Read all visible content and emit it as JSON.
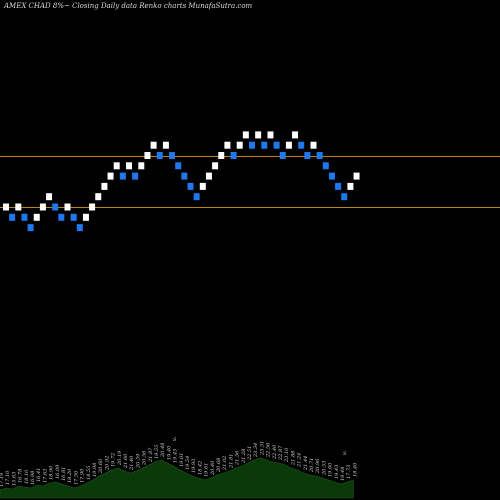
{
  "chart_data": {
    "type": "renko",
    "title": "AMEX  CHAD 8%~  Closing Daily data  Renko  charts MunafaSutra.com",
    "colors": {
      "background": "#000000",
      "up_brick": "#ffffff",
      "down_brick": "#1e78f0",
      "level_line": "#b8860b",
      "volume_fill": "#0a3a0a",
      "volume_outline": "#1e5a1e"
    },
    "level_lines": [
      6.2,
      4.7
    ],
    "bricks": [
      {
        "dir": "up",
        "level": 4.7
      },
      {
        "dir": "down",
        "level": 4.4
      },
      {
        "dir": "up",
        "level": 4.7
      },
      {
        "dir": "down",
        "level": 4.4
      },
      {
        "dir": "down",
        "level": 4.1
      },
      {
        "dir": "up",
        "level": 4.4
      },
      {
        "dir": "up",
        "level": 4.7
      },
      {
        "dir": "up",
        "level": 5.0
      },
      {
        "dir": "down",
        "level": 4.7
      },
      {
        "dir": "down",
        "level": 4.4
      },
      {
        "dir": "up",
        "level": 4.7
      },
      {
        "dir": "down",
        "level": 4.4
      },
      {
        "dir": "down",
        "level": 4.1
      },
      {
        "dir": "up",
        "level": 4.4
      },
      {
        "dir": "up",
        "level": 4.7
      },
      {
        "dir": "up",
        "level": 5.0
      },
      {
        "dir": "up",
        "level": 5.3
      },
      {
        "dir": "up",
        "level": 5.6
      },
      {
        "dir": "up",
        "level": 5.9
      },
      {
        "dir": "down",
        "level": 5.6
      },
      {
        "dir": "up",
        "level": 5.9
      },
      {
        "dir": "down",
        "level": 5.6
      },
      {
        "dir": "up",
        "level": 5.9
      },
      {
        "dir": "up",
        "level": 6.2
      },
      {
        "dir": "up",
        "level": 6.5
      },
      {
        "dir": "down",
        "level": 6.2
      },
      {
        "dir": "up",
        "level": 6.5
      },
      {
        "dir": "down",
        "level": 6.2
      },
      {
        "dir": "down",
        "level": 5.9
      },
      {
        "dir": "down",
        "level": 5.6
      },
      {
        "dir": "down",
        "level": 5.3
      },
      {
        "dir": "down",
        "level": 5.0
      },
      {
        "dir": "up",
        "level": 5.3
      },
      {
        "dir": "up",
        "level": 5.6
      },
      {
        "dir": "up",
        "level": 5.9
      },
      {
        "dir": "up",
        "level": 6.2
      },
      {
        "dir": "up",
        "level": 6.5
      },
      {
        "dir": "down",
        "level": 6.2
      },
      {
        "dir": "up",
        "level": 6.5
      },
      {
        "dir": "up",
        "level": 6.8
      },
      {
        "dir": "down",
        "level": 6.5
      },
      {
        "dir": "up",
        "level": 6.8
      },
      {
        "dir": "down",
        "level": 6.5
      },
      {
        "dir": "up",
        "level": 6.8
      },
      {
        "dir": "down",
        "level": 6.5
      },
      {
        "dir": "down",
        "level": 6.2
      },
      {
        "dir": "up",
        "level": 6.5
      },
      {
        "dir": "up",
        "level": 6.8
      },
      {
        "dir": "down",
        "level": 6.5
      },
      {
        "dir": "down",
        "level": 6.2
      },
      {
        "dir": "up",
        "level": 6.5
      },
      {
        "dir": "down",
        "level": 6.2
      },
      {
        "dir": "down",
        "level": 5.9
      },
      {
        "dir": "down",
        "level": 5.6
      },
      {
        "dir": "down",
        "level": 5.3
      },
      {
        "dir": "down",
        "level": 5.0
      },
      {
        "dir": "up",
        "level": 5.3
      },
      {
        "dir": "up",
        "level": 5.6
      }
    ],
    "volume_values": [
      8,
      10,
      9,
      12,
      11,
      10,
      13,
      12,
      15,
      16,
      14,
      12,
      10,
      12,
      15,
      18,
      22,
      25,
      28,
      30,
      27,
      25,
      27,
      30,
      33,
      36,
      38,
      35,
      32,
      28,
      25,
      22,
      20,
      18,
      20,
      23,
      25,
      27,
      30,
      32,
      35,
      38,
      40,
      38,
      36,
      35,
      33,
      30,
      28,
      25,
      23,
      22,
      20,
      18,
      16,
      14,
      16,
      18
    ],
    "volume_labels": [
      "17.19",
      "17.10",
      "15.63",
      "16.78",
      "18.10",
      "16.98",
      "16.41",
      "17.63",
      "18.90",
      "16.09",
      "16.81",
      "18.20",
      "17.50",
      "17.90",
      "18.55",
      "19.98",
      "20.60",
      "20.92",
      "19.72",
      "20.19",
      "21.60",
      "21.40",
      "20.59",
      "20.56",
      "21.87",
      "19.55",
      "20.48",
      "19.40",
      "19.45",
      "19.01",
      "19.54",
      "19.93",
      "18.42",
      "19.61",
      "20.40",
      "20.68",
      "21.02",
      "21.81",
      "21.56",
      "21.28",
      "22.51",
      "23.34",
      "23.51",
      "22.56",
      "22.40",
      "22.87",
      "23.10",
      "21.88",
      "21.24",
      "21.44",
      "20.71",
      "20.96",
      "20.53",
      "19.60",
      "19.43",
      "19.48",
      "17.73",
      "18.40"
    ],
    "volume_markers": [
      "S",
      "S"
    ]
  }
}
